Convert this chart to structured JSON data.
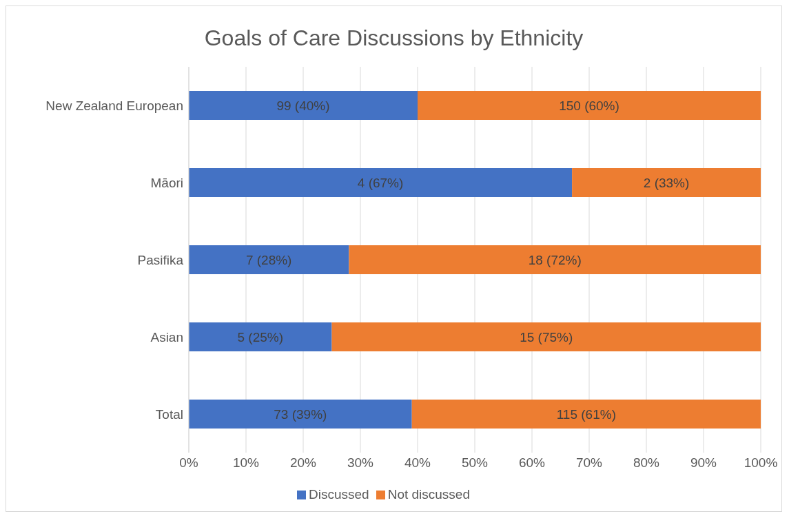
{
  "chart_data": {
    "type": "bar",
    "orientation": "horizontal",
    "stacked": true,
    "title": "Goals of Care Discussions by Ethnicity",
    "categories": [
      "New Zealand European",
      "Māori",
      "Pasifika",
      "Asian",
      "Total"
    ],
    "series": [
      {
        "name": "Discussed",
        "color": "#4472c4",
        "values": [
          40,
          67,
          28,
          25,
          39
        ],
        "value_labels": [
          "99 (40%)",
          "4 (67%)",
          "7 (28%)",
          "5 (25%)",
          "73 (39%)"
        ]
      },
      {
        "name": "Not discussed",
        "color": "#ed7d31",
        "values": [
          60,
          33,
          72,
          75,
          61
        ],
        "value_labels": [
          "150 (60%)",
          "2 (33%)",
          "18 (72%)",
          "15 (75%)",
          "115 (61%)"
        ]
      }
    ],
    "xlim": [
      0,
      100
    ],
    "xticks": [
      {
        "value": 0,
        "label": "0%"
      },
      {
        "value": 10,
        "label": "10%"
      },
      {
        "value": 20,
        "label": "20%"
      },
      {
        "value": 30,
        "label": "30%"
      },
      {
        "value": 40,
        "label": "40%"
      },
      {
        "value": 50,
        "label": "50%"
      },
      {
        "value": 60,
        "label": "60%"
      },
      {
        "value": 70,
        "label": "70%"
      },
      {
        "value": 80,
        "label": "80%"
      },
      {
        "value": 90,
        "label": "90%"
      },
      {
        "value": 100,
        "label": "100%"
      }
    ],
    "grid": "x",
    "legend": "bottom"
  }
}
